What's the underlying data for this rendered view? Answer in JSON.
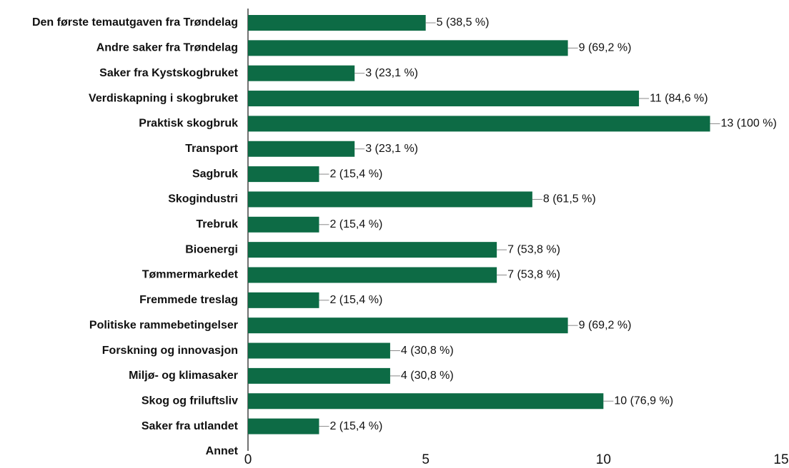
{
  "chart_data": {
    "type": "bar",
    "orientation": "horizontal",
    "categories": [
      "Den første temautgaven fra Trøndelag",
      "Andre saker fra Trøndelag",
      "Saker fra Kystskogbruket",
      "Verdiskapning i skogbruket",
      "Praktisk skogbruk",
      "Transport",
      "Sagbruk",
      "Skogindustri",
      "Trebruk",
      "Bioenergi",
      "Tømmermarkedet",
      "Fremmede treslag",
      "Politiske rammebetingelser",
      "Forskning og innovasjon",
      "Miljø- og klimasaker",
      "Skog og friluftsliv",
      "Saker fra utlandet",
      "Annet"
    ],
    "values": [
      5,
      9,
      3,
      11,
      13,
      3,
      2,
      8,
      2,
      7,
      7,
      2,
      9,
      4,
      4,
      10,
      2,
      null
    ],
    "value_labels": [
      "5 (38,5 %)",
      "9 (69,2 %)",
      "3 (23,1 %)",
      "11 (84,6 %)",
      "13 (100 %)",
      "3 (23,1 %)",
      "2 (15,4 %)",
      "8 (61,5 %)",
      "2 (15,4 %)",
      "7 (53,8 %)",
      "7 (53,8 %)",
      "2 (15,4 %)",
      "9 (69,2 %)",
      "4 (30,8 %)",
      "4 (30,8 %)",
      "10 (76,9 %)",
      "2 (15,4 %)",
      null
    ],
    "color": "#0d6b45",
    "xlim": [
      0,
      15
    ],
    "xticks": [
      0,
      5,
      10,
      15
    ],
    "grid": false
  }
}
